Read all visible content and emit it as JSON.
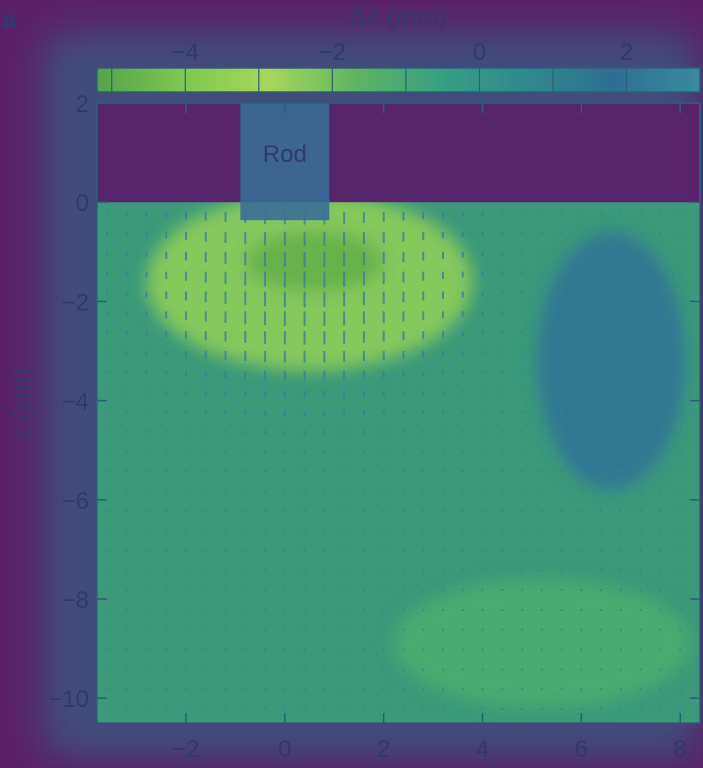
{
  "chart_data": {
    "type": "heatmap",
    "panel_label": "a",
    "colorbar": {
      "label": "Δz (mm)",
      "ticks": [
        -4,
        -2,
        0,
        2
      ],
      "range": [
        -5.2,
        3.0
      ],
      "colors": [
        "#55a24a",
        "#7dc850",
        "#a6d85a",
        "#5fb560",
        "#35a083",
        "#2e8a8c",
        "#2e6e94",
        "#3a8aa0"
      ]
    },
    "xlabel": "",
    "ylabel": "z (cm)",
    "xlim": [
      -3.8,
      8.4
    ],
    "ylim": [
      -10.5,
      2
    ],
    "xticks": [
      -2,
      0,
      2,
      4,
      6,
      8
    ],
    "yticks": [
      2,
      0,
      -2,
      -4,
      -6,
      -8,
      -10
    ],
    "rod": {
      "label": "Rod",
      "x_range": [
        -0.9,
        0.9
      ],
      "z_range": [
        0,
        2
      ]
    },
    "regions": [
      {
        "name": "",
        "value": -3.5,
        "x_center": 0.5,
        "z_center": -1.6,
        "x_radius": 3.3,
        "z_radius": 1.8
      },
      {
        "name": "",
        "value": -4.8,
        "x_center": 0.6,
        "z_center": -1.2,
        "x_radius": 1.4,
        "z_radius": 0.6
      },
      {
        "name": "",
        "value": 2.0,
        "x_center": 6.6,
        "z_center": -3.2,
        "x_radius": 1.5,
        "z_radius": 2.6
      },
      {
        "name": "",
        "value": -1.2,
        "x_center": 5.2,
        "z_center": -8.9,
        "x_radius": 3.0,
        "z_radius": 1.3
      }
    ],
    "vectors": {
      "x_step": 0.4,
      "z_step": 0.4,
      "color": "#3a7fa0"
    }
  }
}
